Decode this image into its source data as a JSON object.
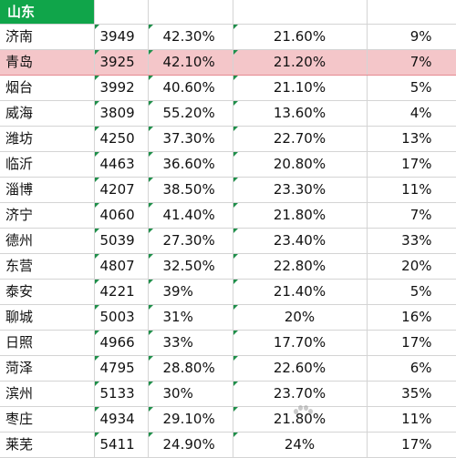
{
  "sheet": {
    "province": "山东",
    "rows": [
      {
        "city": "济南",
        "c1": "3949",
        "c2": "42.30%",
        "c3": "21.60%",
        "c4": "9%"
      },
      {
        "city": "青岛",
        "c1": "3925",
        "c2": "42.10%",
        "c3": "21.20%",
        "c4": "7%"
      },
      {
        "city": "烟台",
        "c1": "3992",
        "c2": "40.60%",
        "c3": "21.10%",
        "c4": "5%"
      },
      {
        "city": "威海",
        "c1": "3809",
        "c2": "55.20%",
        "c3": "13.60%",
        "c4": "4%"
      },
      {
        "city": "潍坊",
        "c1": "4250",
        "c2": "37.30%",
        "c3": "22.70%",
        "c4": "13%"
      },
      {
        "city": "临沂",
        "c1": "4463",
        "c2": "36.60%",
        "c3": "20.80%",
        "c4": "17%"
      },
      {
        "city": "淄博",
        "c1": "4207",
        "c2": "38.50%",
        "c3": "23.30%",
        "c4": "11%"
      },
      {
        "city": "济宁",
        "c1": "4060",
        "c2": "41.40%",
        "c3": "21.80%",
        "c4": "7%"
      },
      {
        "city": "德州",
        "c1": "5039",
        "c2": "27.30%",
        "c3": "23.40%",
        "c4": "33%"
      },
      {
        "city": "东营",
        "c1": "4807",
        "c2": "32.50%",
        "c3": "22.80%",
        "c4": "20%"
      },
      {
        "city": "泰安",
        "c1": "4221",
        "c2": "39%",
        "c3": "21.40%",
        "c4": "5%"
      },
      {
        "city": "聊城",
        "c1": "5003",
        "c2": "31%",
        "c3": "20%",
        "c4": "16%"
      },
      {
        "city": "日照",
        "c1": "4966",
        "c2": "33%",
        "c3": "17.70%",
        "c4": "17%"
      },
      {
        "city": "菏泽",
        "c1": "4795",
        "c2": "28.80%",
        "c3": "22.60%",
        "c4": "6%"
      },
      {
        "city": "滨州",
        "c1": "5133",
        "c2": "30%",
        "c3": "23.70%",
        "c4": "35%"
      },
      {
        "city": "枣庄",
        "c1": "4934",
        "c2": "29.10%",
        "c3": "21.80%",
        "c4": "11%"
      },
      {
        "city": "莱芜",
        "c1": "5411",
        "c2": "24.90%",
        "c3": "24%",
        "c4": "17%"
      }
    ]
  },
  "colors": {
    "header_green": "#10a54a",
    "highlight_pink": "#f4c6c9",
    "grid_line": "#d4d4d4"
  }
}
